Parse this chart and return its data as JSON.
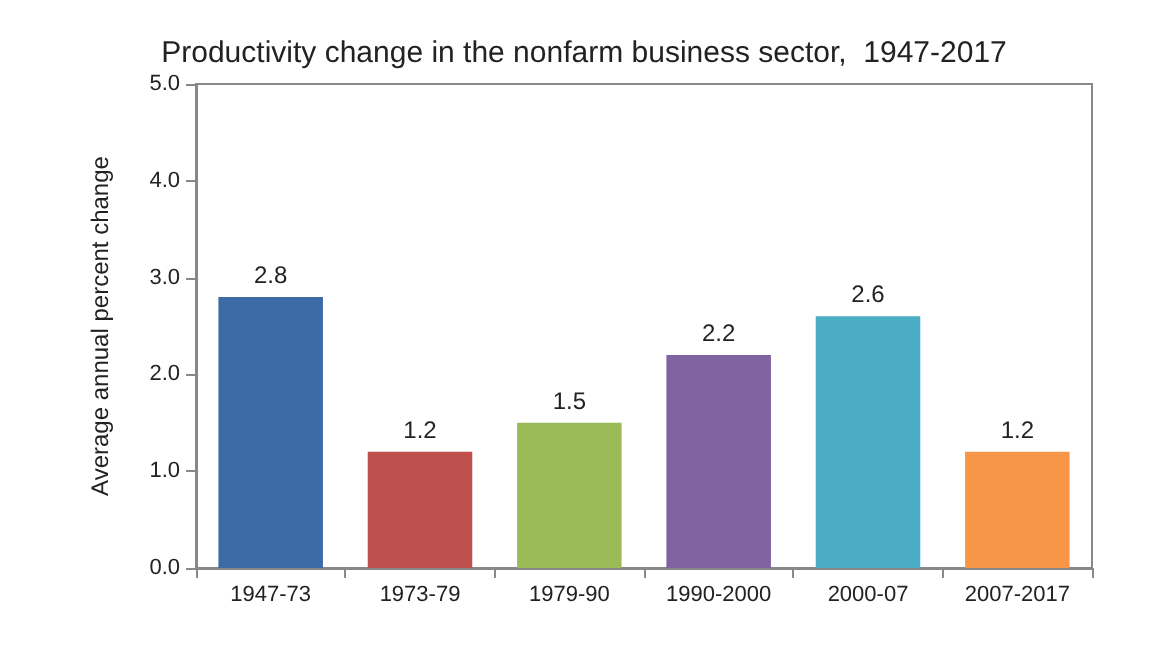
{
  "chart_data": {
    "type": "bar",
    "title": "Productivity change in the nonfarm business sector,  1947-2017",
    "ylabel": "Average annual percent change",
    "categories": [
      "1947-73",
      "1973-79",
      "1979-90",
      "1990-2000",
      "2000-07",
      "2007-2017"
    ],
    "values": [
      2.8,
      1.2,
      1.5,
      2.2,
      2.6,
      1.2
    ],
    "colors": [
      "#3d6ba6",
      "#c0504d",
      "#9bbb59",
      "#8064a2",
      "#4bacc6",
      "#f79646"
    ],
    "ylim": [
      0,
      5
    ],
    "yticks": [
      {
        "value": 0,
        "label": "0.0"
      },
      {
        "value": 1,
        "label": "1.0"
      },
      {
        "value": 2,
        "label": "2.0"
      },
      {
        "value": 3,
        "label": "3.0"
      },
      {
        "value": 4,
        "label": "4.0"
      },
      {
        "value": 5,
        "label": "5.0"
      }
    ],
    "grid": false,
    "data_labels": true
  }
}
